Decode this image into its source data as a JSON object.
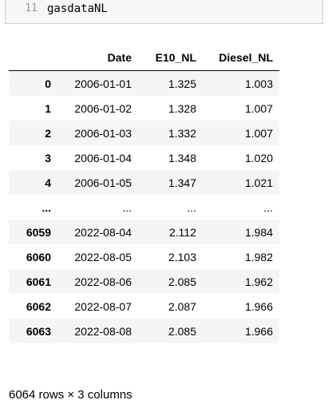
{
  "input_cell": {
    "line_number": "11",
    "code": "gasdataNL"
  },
  "table": {
    "columns": [
      "",
      "Date",
      "E10_NL",
      "Diesel_NL"
    ],
    "rows": [
      {
        "index": "0",
        "date": "2006-01-01",
        "e10": "1.325",
        "diesel": "1.003"
      },
      {
        "index": "1",
        "date": "2006-01-02",
        "e10": "1.328",
        "diesel": "1.007"
      },
      {
        "index": "2",
        "date": "2006-01-03",
        "e10": "1.332",
        "diesel": "1.007"
      },
      {
        "index": "3",
        "date": "2006-01-04",
        "e10": "1.348",
        "diesel": "1.020"
      },
      {
        "index": "4",
        "date": "2006-01-05",
        "e10": "1.347",
        "diesel": "1.021"
      },
      {
        "index": "...",
        "date": "...",
        "e10": "...",
        "diesel": "..."
      },
      {
        "index": "6059",
        "date": "2022-08-04",
        "e10": "2.112",
        "diesel": "1.984"
      },
      {
        "index": "6060",
        "date": "2022-08-05",
        "e10": "2.103",
        "diesel": "1.982"
      },
      {
        "index": "6061",
        "date": "2022-08-06",
        "e10": "2.085",
        "diesel": "1.962"
      },
      {
        "index": "6062",
        "date": "2022-08-07",
        "e10": "2.087",
        "diesel": "1.966"
      },
      {
        "index": "6063",
        "date": "2022-08-08",
        "e10": "2.085",
        "diesel": "1.966"
      }
    ]
  },
  "shape_text": "6064 rows × 3 columns"
}
